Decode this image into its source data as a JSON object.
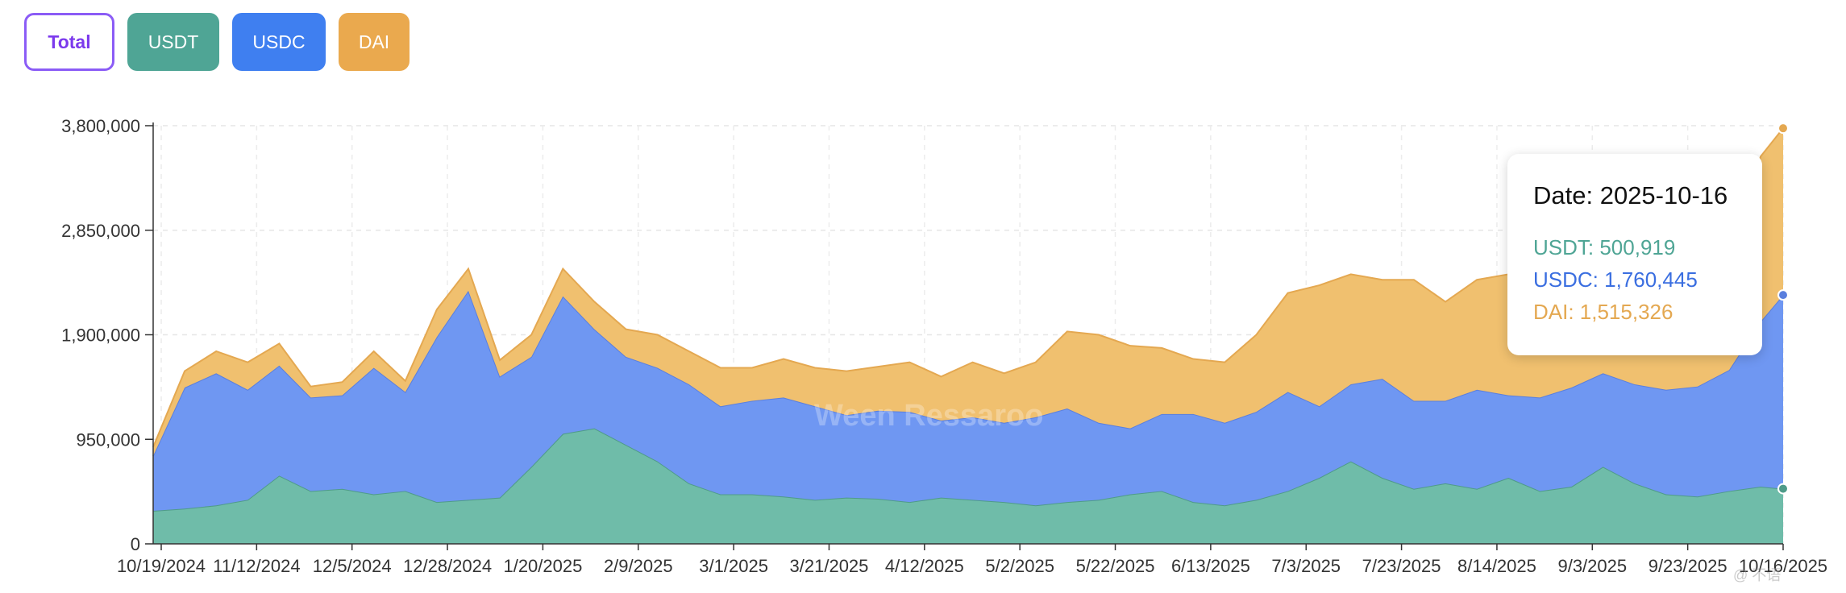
{
  "filters": [
    {
      "label": "Total"
    },
    {
      "label": "USDT"
    },
    {
      "label": "USDC"
    },
    {
      "label": "DAI"
    }
  ],
  "colors": {
    "usdt": "#6fbca9",
    "usdc": "#6f97f2",
    "dai": "#f0c06f",
    "usdt_line": "#4f9b89",
    "usdc_line": "#5a7fde",
    "dai_line": "#e4a851",
    "accent": "#8b5cf6"
  },
  "watermark": "Ween Ressaroo",
  "corner_mark": "@ 不语",
  "tooltip": {
    "date": "Date: 2025-10-16",
    "usdt": "USDT: 500,919",
    "usdc": "USDC: 1,760,445",
    "dai": "DAI: 1,515,326"
  },
  "chart_data": {
    "type": "area",
    "stacked": true,
    "ylim": [
      0,
      3800000
    ],
    "yticks": [
      "0",
      "950,000",
      "1,900,000",
      "2,850,000",
      "3,800,000"
    ],
    "ytick_values": [
      0,
      950000,
      1900000,
      2850000,
      3800000
    ],
    "xticks": [
      "10/19/2024",
      "11/12/2024",
      "12/5/2024",
      "12/28/2024",
      "1/20/2025",
      "2/9/2025",
      "3/1/2025",
      "3/21/2025",
      "4/12/2025",
      "5/2/2025",
      "5/22/2025",
      "6/13/2025",
      "7/3/2025",
      "7/23/2025",
      "8/14/2025",
      "9/3/2025",
      "9/23/2025",
      "10/16/2025"
    ],
    "x": [
      "2024-10-19",
      "2024-10-26",
      "2024-11-02",
      "2024-11-09",
      "2024-11-16",
      "2024-11-23",
      "2024-11-30",
      "2024-12-07",
      "2024-12-14",
      "2024-12-21",
      "2024-12-28",
      "2025-01-04",
      "2025-01-11",
      "2025-01-18",
      "2025-01-25",
      "2025-02-01",
      "2025-02-08",
      "2025-02-15",
      "2025-02-22",
      "2025-03-01",
      "2025-03-08",
      "2025-03-15",
      "2025-03-22",
      "2025-03-29",
      "2025-04-05",
      "2025-04-12",
      "2025-04-19",
      "2025-04-26",
      "2025-05-03",
      "2025-05-10",
      "2025-05-17",
      "2025-05-24",
      "2025-05-31",
      "2025-06-07",
      "2025-06-14",
      "2025-06-21",
      "2025-06-28",
      "2025-07-05",
      "2025-07-12",
      "2025-07-19",
      "2025-07-26",
      "2025-08-02",
      "2025-08-09",
      "2025-08-16",
      "2025-08-23",
      "2025-08-30",
      "2025-09-06",
      "2025-09-13",
      "2025-09-20",
      "2025-09-27",
      "2025-10-04",
      "2025-10-11",
      "2025-10-16"
    ],
    "series": [
      {
        "name": "USDT",
        "values": [
          300000,
          320000,
          350000,
          400000,
          620000,
          480000,
          500000,
          450000,
          480000,
          380000,
          400000,
          420000,
          700000,
          1000000,
          1050000,
          900000,
          750000,
          550000,
          450000,
          450000,
          430000,
          400000,
          420000,
          410000,
          380000,
          420000,
          400000,
          380000,
          350000,
          380000,
          400000,
          450000,
          480000,
          380000,
          350000,
          400000,
          480000,
          600000,
          750000,
          600000,
          500000,
          550000,
          500000,
          600000,
          480000,
          520000,
          700000,
          550000,
          450000,
          430000,
          480000,
          520000,
          500919
        ]
      },
      {
        "name": "USDC",
        "values": [
          500000,
          1100000,
          1200000,
          1000000,
          1000000,
          850000,
          850000,
          1150000,
          900000,
          1500000,
          1900000,
          1100000,
          1000000,
          1250000,
          900000,
          800000,
          850000,
          900000,
          800000,
          850000,
          900000,
          850000,
          750000,
          800000,
          820000,
          700000,
          750000,
          720000,
          800000,
          850000,
          700000,
          600000,
          700000,
          800000,
          750000,
          800000,
          900000,
          650000,
          700000,
          900000,
          800000,
          750000,
          900000,
          750000,
          850000,
          900000,
          850000,
          900000,
          950000,
          1000000,
          1100000,
          1500000,
          1760445
        ]
      },
      {
        "name": "DAI",
        "values": [
          80000,
          150000,
          200000,
          250000,
          200000,
          100000,
          120000,
          150000,
          100000,
          250000,
          200000,
          150000,
          200000,
          250000,
          250000,
          250000,
          300000,
          300000,
          350000,
          300000,
          350000,
          350000,
          400000,
          400000,
          450000,
          400000,
          500000,
          450000,
          500000,
          700000,
          800000,
          750000,
          600000,
          500000,
          550000,
          700000,
          900000,
          1100000,
          1000000,
          900000,
          1100000,
          900000,
          1000000,
          1100000,
          900000,
          800000,
          1000000,
          800000,
          700000,
          900000,
          800000,
          1500000,
          1515326
        ]
      }
    ]
  }
}
